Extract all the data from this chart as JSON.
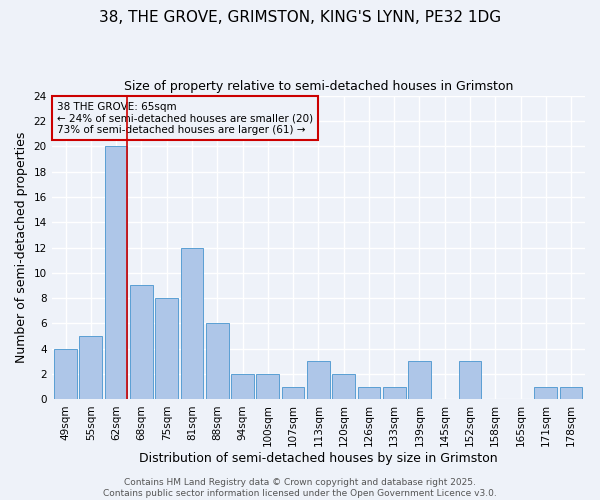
{
  "title1": "38, THE GROVE, GRIMSTON, KING'S LYNN, PE32 1DG",
  "title2": "Size of property relative to semi-detached houses in Grimston",
  "xlabel": "Distribution of semi-detached houses by size in Grimston",
  "ylabel": "Number of semi-detached properties",
  "categories": [
    "49sqm",
    "55sqm",
    "62sqm",
    "68sqm",
    "75sqm",
    "81sqm",
    "88sqm",
    "94sqm",
    "100sqm",
    "107sqm",
    "113sqm",
    "120sqm",
    "126sqm",
    "133sqm",
    "139sqm",
    "145sqm",
    "152sqm",
    "158sqm",
    "165sqm",
    "171sqm",
    "178sqm"
  ],
  "values": [
    4,
    5,
    20,
    9,
    8,
    12,
    6,
    2,
    2,
    1,
    3,
    2,
    1,
    1,
    3,
    0,
    3,
    0,
    0,
    1,
    1
  ],
  "bar_color": "#aec6e8",
  "bar_edge_color": "#5a9fd4",
  "highlight_index": 2,
  "highlight_color": "#cc0000",
  "annotation_text": "38 THE GROVE: 65sqm\n← 24% of semi-detached houses are smaller (20)\n73% of semi-detached houses are larger (61) →",
  "annotation_box_color": "#cc0000",
  "ylim": [
    0,
    24
  ],
  "yticks": [
    0,
    2,
    4,
    6,
    8,
    10,
    12,
    14,
    16,
    18,
    20,
    22,
    24
  ],
  "footer": "Contains HM Land Registry data © Crown copyright and database right 2025.\nContains public sector information licensed under the Open Government Licence v3.0.",
  "background_color": "#eef2f9",
  "grid_color": "#ffffff",
  "title1_fontsize": 11,
  "title2_fontsize": 9,
  "tick_fontsize": 7.5,
  "label_fontsize": 9,
  "footer_fontsize": 6.5
}
